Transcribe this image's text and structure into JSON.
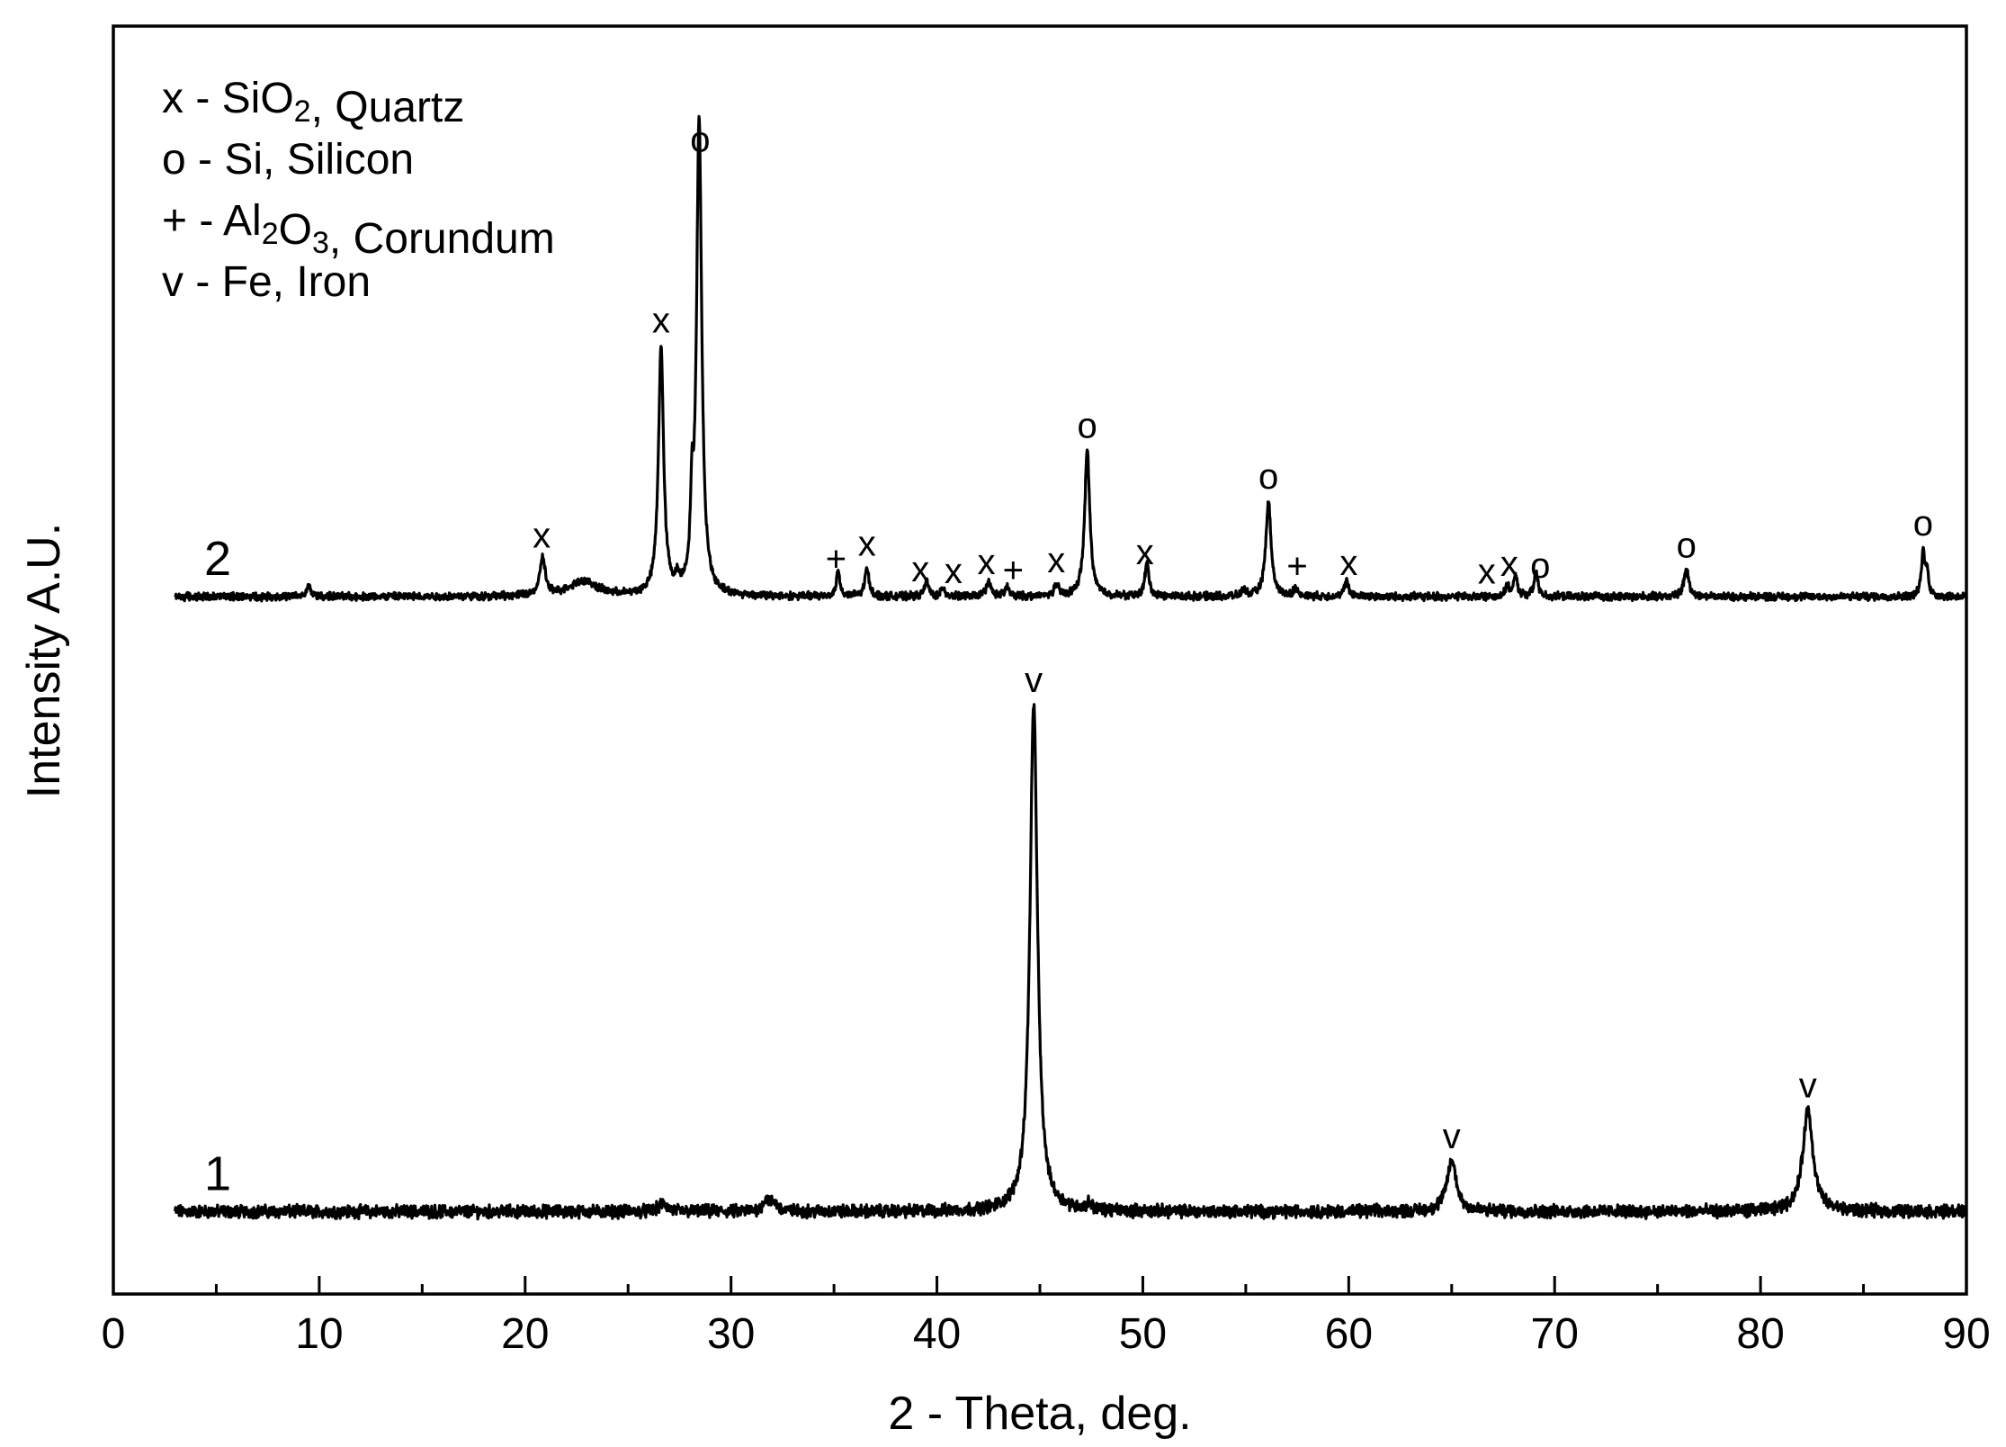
{
  "chart_data": {
    "type": "line",
    "title": "",
    "xlabel": "2 - Theta, deg.",
    "ylabel": "Intensity A.U.",
    "xlim": [
      0,
      90
    ],
    "ylim": [
      0,
      100
    ],
    "x_ticks": [
      0,
      10,
      20,
      30,
      40,
      50,
      60,
      70,
      80,
      90
    ],
    "grid": false,
    "legend_position": "top-left",
    "legend": [
      {
        "marker": "x",
        "segments": [
          {
            "t": "x - SiO"
          },
          {
            "t": "2",
            "sub": true
          },
          {
            "t": ", Quartz"
          }
        ]
      },
      {
        "marker": "o",
        "segments": [
          {
            "t": "o - Si, Silicon"
          }
        ]
      },
      {
        "marker": "+",
        "segments": [
          {
            "t": "+ - Al"
          },
          {
            "t": "2",
            "sub": true
          },
          {
            "t": "O"
          },
          {
            "t": "3",
            "sub": true
          },
          {
            "t": ", Corundum"
          }
        ]
      },
      {
        "marker": "v",
        "segments": [
          {
            "t": "v - Fe, Iron"
          }
        ]
      }
    ],
    "series": [
      {
        "name": "1",
        "x_range": [
          3,
          90
        ],
        "baseline": 6.5,
        "peaks": [
          {
            "x": 26.7,
            "h": 0.6,
            "w": 0.25
          },
          {
            "x": 31.7,
            "h": 0.9,
            "w": 0.2
          },
          {
            "x": 32.1,
            "h": 0.6,
            "w": 0.2
          },
          {
            "x": 44.7,
            "h": 40.0,
            "w": 0.22
          },
          {
            "x": 47.4,
            "h": 0.5,
            "w": 0.15
          },
          {
            "x": 65.0,
            "h": 4.0,
            "w": 0.28
          },
          {
            "x": 82.3,
            "h": 8.0,
            "w": 0.3
          }
        ],
        "markers": [
          {
            "x": 44.7,
            "label": "v"
          },
          {
            "x": 65.0,
            "label": "v"
          },
          {
            "x": 82.3,
            "label": "v"
          }
        ]
      },
      {
        "name": "2",
        "x_range": [
          3,
          90
        ],
        "baseline": 55.0,
        "peaks": [
          {
            "x": 9.5,
            "h": 0.8,
            "w": 0.12
          },
          {
            "x": 20.85,
            "h": 3.0,
            "w": 0.15
          },
          {
            "x": 22.8,
            "h": 1.2,
            "w": 0.8
          },
          {
            "x": 26.6,
            "h": 19.5,
            "w": 0.15
          },
          {
            "x": 27.4,
            "h": 0.8,
            "w": 0.1
          },
          {
            "x": 28.1,
            "h": 5.5,
            "w": 0.08
          },
          {
            "x": 28.45,
            "h": 37.5,
            "w": 0.15
          },
          {
            "x": 35.2,
            "h": 2.0,
            "w": 0.1
          },
          {
            "x": 36.6,
            "h": 2.2,
            "w": 0.12
          },
          {
            "x": 39.5,
            "h": 1.2,
            "w": 0.12
          },
          {
            "x": 40.3,
            "h": 0.7,
            "w": 0.1
          },
          {
            "x": 42.5,
            "h": 1.1,
            "w": 0.15
          },
          {
            "x": 43.4,
            "h": 0.8,
            "w": 0.1
          },
          {
            "x": 45.8,
            "h": 0.8,
            "w": 0.15
          },
          {
            "x": 47.3,
            "h": 11.5,
            "w": 0.15
          },
          {
            "x": 50.2,
            "h": 2.6,
            "w": 0.12
          },
          {
            "x": 54.9,
            "h": 0.5,
            "w": 0.12
          },
          {
            "x": 56.1,
            "h": 7.5,
            "w": 0.15
          },
          {
            "x": 57.4,
            "h": 0.6,
            "w": 0.12
          },
          {
            "x": 59.9,
            "h": 1.2,
            "w": 0.12
          },
          {
            "x": 67.7,
            "h": 0.7,
            "w": 0.12
          },
          {
            "x": 68.1,
            "h": 1.5,
            "w": 0.12
          },
          {
            "x": 69.1,
            "h": 1.8,
            "w": 0.12
          },
          {
            "x": 76.4,
            "h": 2.1,
            "w": 0.15
          },
          {
            "x": 87.9,
            "h": 3.6,
            "w": 0.1
          },
          {
            "x": 88.1,
            "h": 1.8,
            "w": 0.08
          }
        ],
        "markers": [
          {
            "x": 20.8,
            "label": "x"
          },
          {
            "x": 26.6,
            "label": "x"
          },
          {
            "x": 28.5,
            "label": "o"
          },
          {
            "x": 35.1,
            "label": "+"
          },
          {
            "x": 36.6,
            "label": "x"
          },
          {
            "x": 39.2,
            "label": "x"
          },
          {
            "x": 40.8,
            "label": "x"
          },
          {
            "x": 42.4,
            "label": "x"
          },
          {
            "x": 43.7,
            "label": "+"
          },
          {
            "x": 45.8,
            "label": "x"
          },
          {
            "x": 47.3,
            "label": "o"
          },
          {
            "x": 50.1,
            "label": "x"
          },
          {
            "x": 56.1,
            "label": "o"
          },
          {
            "x": 57.5,
            "label": "+"
          },
          {
            "x": 60.0,
            "label": "x"
          },
          {
            "x": 66.7,
            "label": "x"
          },
          {
            "x": 67.8,
            "label": "x"
          },
          {
            "x": 69.3,
            "label": "o"
          },
          {
            "x": 76.4,
            "label": "o"
          },
          {
            "x": 87.9,
            "label": "o"
          }
        ]
      }
    ]
  }
}
